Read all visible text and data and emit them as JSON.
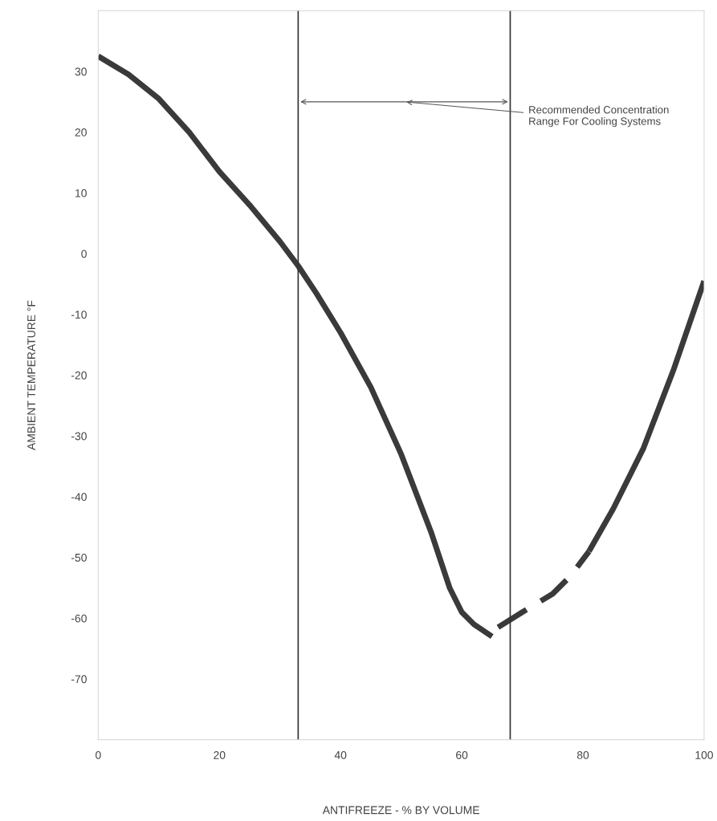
{
  "chart_data": {
    "type": "line",
    "xlabel": "ANTIFREEZE - % BY VOLUME",
    "ylabel": "AMBIENT TEMPERATURE °F",
    "series": [
      {
        "color": "#3a3a3a",
        "line_style": "solid",
        "x": [
          0,
          5,
          10,
          15,
          20,
          25,
          30,
          33,
          36,
          40,
          45,
          50,
          55,
          58,
          60,
          62,
          65
        ],
        "values": [
          32.5,
          29.5,
          25.5,
          20,
          13.5,
          8,
          2,
          -2,
          -6.5,
          -13,
          -22,
          -33,
          -46,
          -55,
          -59,
          -61,
          -63
        ]
      },
      {
        "color": "#3a3a3a",
        "line_style": "dashed",
        "x": [
          66,
          70,
          75,
          78,
          81
        ],
        "values": [
          -61.5,
          -59,
          -56,
          -53,
          -49
        ]
      },
      {
        "color": "#3a3a3a",
        "line_style": "solid",
        "x": [
          81,
          85,
          90,
          95,
          100
        ],
        "values": [
          -49,
          -42,
          -32,
          -19,
          -4.5
        ]
      }
    ],
    "xlim": [
      0,
      100
    ],
    "ylim": [
      -80,
      40
    ],
    "xticks": [
      0,
      20,
      40,
      60,
      80,
      100
    ],
    "yticks": [
      {
        "value": -80,
        "label": null
      },
      -70,
      -60,
      -50,
      -40,
      -30,
      -20,
      -10,
      0,
      10,
      20,
      30,
      {
        "value": 40,
        "label": null
      }
    ],
    "ref_lines": [
      {
        "axis": "x",
        "value": 33,
        "color": "#333333"
      },
      {
        "axis": "x",
        "value": 68,
        "color": "#333333"
      }
    ],
    "annotations": [
      "Recommended Concentration\nRange For Cooling Systems"
    ],
    "grid": false,
    "legend": false
  }
}
